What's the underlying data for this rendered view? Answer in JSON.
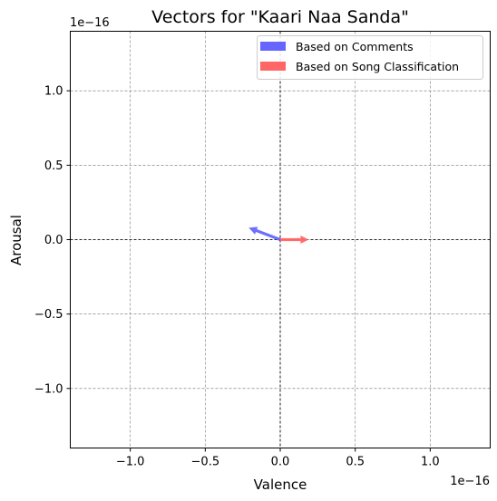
{
  "chart_data": {
    "type": "quiver",
    "title": "Vectors for \"Kaari Naa Sanda\"",
    "xlabel": "Valence",
    "ylabel": "Arousal",
    "x_offset_text": "1e−16",
    "y_offset_text": "1e−16",
    "xlim": [
      -1.4,
      1.4
    ],
    "ylim": [
      -1.4,
      1.4
    ],
    "x_ticks": [
      -1.0,
      -0.5,
      0.0,
      0.5,
      1.0
    ],
    "y_ticks": [
      -1.0,
      -0.5,
      0.0,
      0.5,
      1.0
    ],
    "x_tick_labels": [
      "−1.0",
      "−0.5",
      "0.0",
      "0.5",
      "1.0"
    ],
    "y_tick_labels": [
      "−1.0",
      "−0.5",
      "0.0",
      "0.5",
      "1.0"
    ],
    "grid": true,
    "legend_position": "top-right",
    "series": [
      {
        "name": "Based on Comments",
        "color": "#6666ff",
        "x0": 0,
        "y0": 0,
        "dx": -0.21,
        "dy": 0.08
      },
      {
        "name": "Based on Song Classification",
        "color": "#ff6666",
        "x0": 0,
        "y0": 0,
        "dx": 0.19,
        "dy": 0.0
      }
    ]
  }
}
